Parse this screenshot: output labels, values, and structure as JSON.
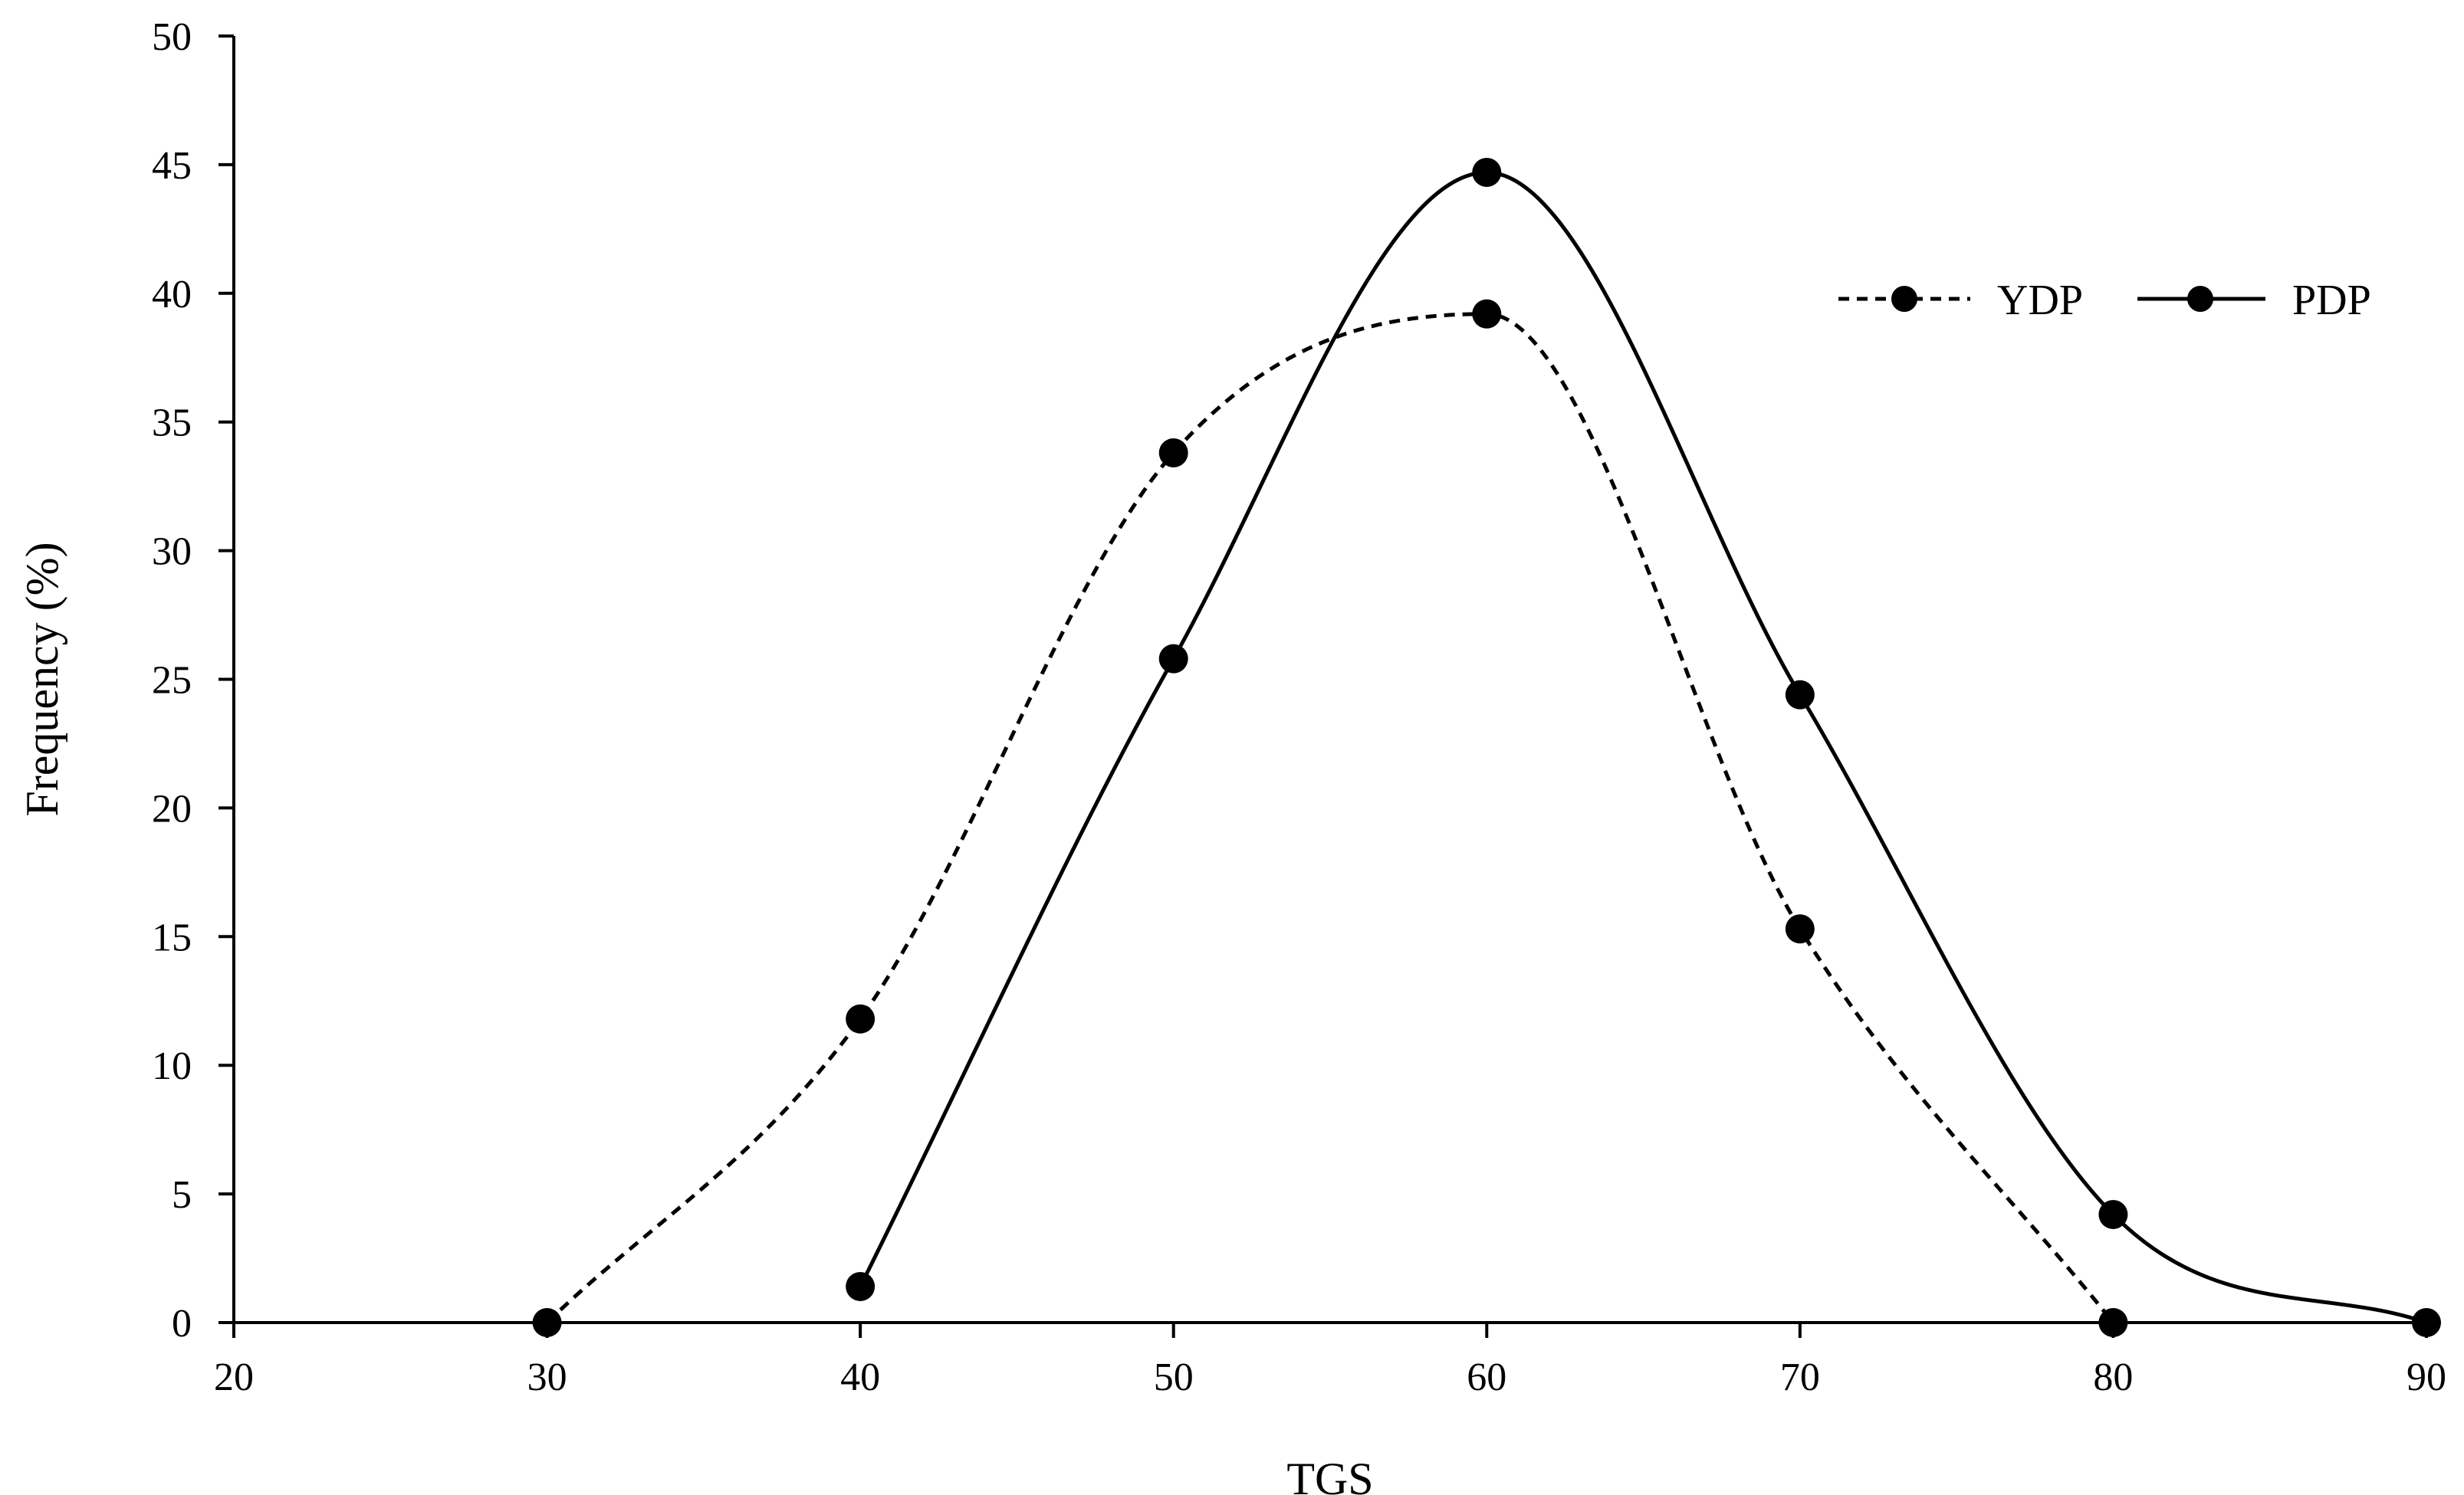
{
  "chart_data": {
    "type": "line",
    "title": "",
    "xlabel": "TGS",
    "ylabel": "Frequency (%)",
    "xlim": [
      20,
      90
    ],
    "ylim": [
      0,
      50
    ],
    "xticks": [
      "20",
      "30",
      "40",
      "50",
      "60",
      "70",
      "80",
      "90"
    ],
    "yticks": [
      "0",
      "5",
      "10",
      "15",
      "20",
      "25",
      "30",
      "35",
      "40",
      "45",
      "50"
    ],
    "grid": false,
    "legend_position": "top-right",
    "smooth": true,
    "series": [
      {
        "name": "YDP",
        "style": "dashed",
        "color": "#000000",
        "x": [
          30,
          40,
          50,
          60,
          70,
          80
        ],
        "y": [
          0,
          11.8,
          33.8,
          39.2,
          15.3,
          0
        ]
      },
      {
        "name": "PDP",
        "style": "solid",
        "color": "#000000",
        "x": [
          40,
          50,
          60,
          70,
          80,
          90
        ],
        "y": [
          1.4,
          25.8,
          44.7,
          24.4,
          4.2,
          0
        ]
      }
    ]
  }
}
